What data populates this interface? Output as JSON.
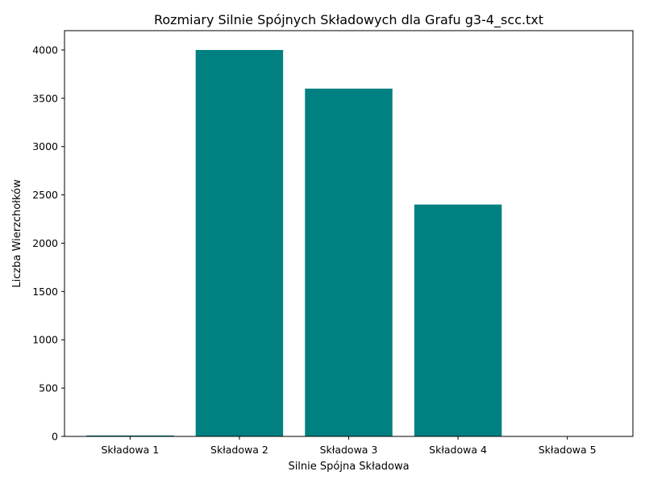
{
  "chart_data": {
    "type": "bar",
    "title": "Rozmiary Silnie Spójnych Składowych dla Grafu g3-4_scc.txt",
    "xlabel": "Silnie Spójna Składowa",
    "ylabel": "Liczba Wierzchołków",
    "categories": [
      "Składowa 1",
      "Składowa 2",
      "Składowa 3",
      "Składowa 4",
      "Składowa 5"
    ],
    "values": [
      10,
      4000,
      3600,
      2400,
      1
    ],
    "ylim": [
      0,
      4200
    ],
    "yticks": [
      0,
      500,
      1000,
      1500,
      2000,
      2500,
      3000,
      3500,
      4000
    ],
    "bar_color": "#008080",
    "grid": false,
    "legend": "none"
  }
}
